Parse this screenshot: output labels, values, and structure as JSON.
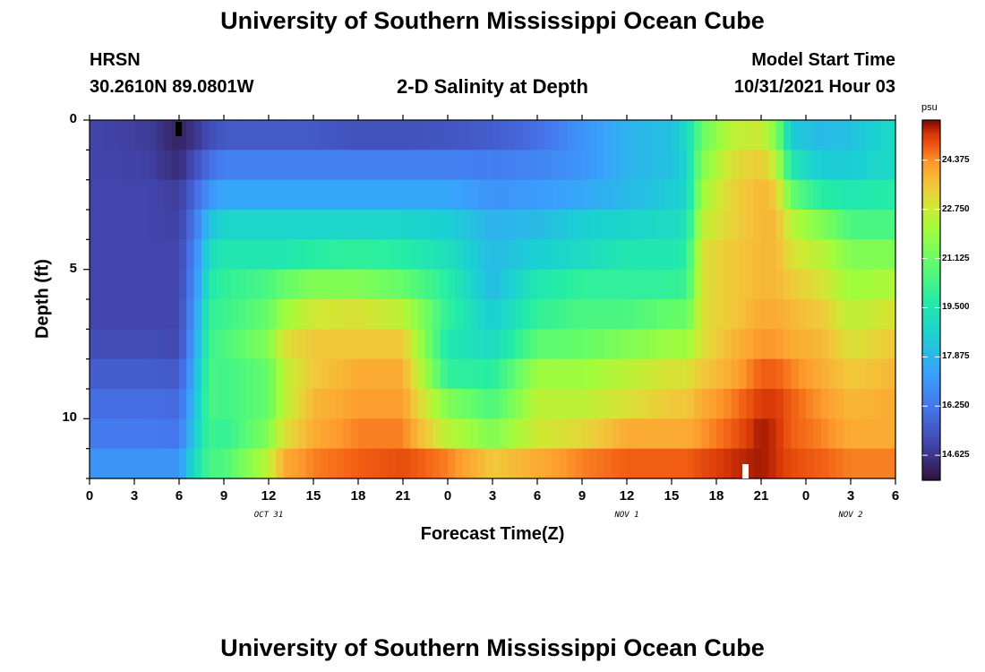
{
  "page": {
    "title": "University of Southern Mississippi Ocean Cube",
    "footer_title": "University of Southern Mississippi Ocean Cube",
    "station": "HRSN",
    "coords": "30.2610N  89.0801W",
    "subtitle": "2-D Salinity at Depth",
    "model_label": "Model Start Time",
    "model_time": "10/31/2021 Hour 03"
  },
  "chart_data": {
    "type": "heatmap",
    "title": "2-D Salinity at Depth",
    "xlabel": "Forecast Time(Z)",
    "ylabel": "Depth (ft)",
    "x_ticks": [
      "0",
      "3",
      "6",
      "9",
      "12",
      "15",
      "18",
      "21",
      "0",
      "3",
      "6",
      "9",
      "12",
      "15",
      "18",
      "21",
      "0",
      "3",
      "6"
    ],
    "x_date_labels": [
      {
        "label": "OCT 31",
        "hour": 12
      },
      {
        "label": "NOV 1",
        "hour": 36
      },
      {
        "label": "NOV 2",
        "hour": 51
      }
    ],
    "x_range_hours": [
      0,
      54
    ],
    "y_ticks": [
      "0",
      "5",
      "10"
    ],
    "y_range_ft": [
      0,
      12
    ],
    "depth_levels_ft": [
      0.5,
      1.5,
      2.5,
      3.5,
      4.5,
      5.5,
      6.5,
      7.5,
      8.5,
      9.5,
      10.5,
      11.5
    ],
    "colorbar": {
      "unit": "psu",
      "ticks": [
        "24.375",
        "22.750",
        "21.125",
        "19.500",
        "17.875",
        "16.250",
        "14.625"
      ],
      "range": [
        13.8,
        25.7
      ]
    },
    "keyframes": [
      {
        "hour": 0,
        "values": [
          15.0,
          15.0,
          15.0,
          15.0,
          15.0,
          15.0,
          15.0,
          15.2,
          15.6,
          16.0,
          16.3,
          17.0
        ]
      },
      {
        "hour": 4,
        "values": [
          14.8,
          14.9,
          15.0,
          15.0,
          15.0,
          15.0,
          15.0,
          15.2,
          15.6,
          16.0,
          16.3,
          17.0
        ]
      },
      {
        "hour": 6,
        "values": [
          14.2,
          14.4,
          14.8,
          14.9,
          15.0,
          15.0,
          15.0,
          15.1,
          15.5,
          15.9,
          16.2,
          17.0
        ]
      },
      {
        "hour": 7,
        "values": [
          14.6,
          15.2,
          15.8,
          16.2,
          16.5,
          16.7,
          17.0,
          17.3,
          17.7,
          18.0,
          18.4,
          19.0
        ]
      },
      {
        "hour": 8,
        "values": [
          15.2,
          16.0,
          17.0,
          18.2,
          19.0,
          19.5,
          20.0,
          20.2,
          20.5,
          20.5,
          20.3,
          20.5
        ]
      },
      {
        "hour": 9,
        "values": [
          15.5,
          16.5,
          17.5,
          18.8,
          19.5,
          20.0,
          20.2,
          20.5,
          20.3,
          20.3,
          20.0,
          20.5
        ]
      },
      {
        "hour": 12,
        "values": [
          15.5,
          16.5,
          17.5,
          18.8,
          19.5,
          20.5,
          21.0,
          21.5,
          21.0,
          21.0,
          21.5,
          22.5
        ]
      },
      {
        "hour": 13,
        "values": [
          15.5,
          16.5,
          17.5,
          18.8,
          19.5,
          21.0,
          22.0,
          23.0,
          22.5,
          22.5,
          23.0,
          24.0
        ]
      },
      {
        "hour": 15,
        "values": [
          15.5,
          16.5,
          17.5,
          18.8,
          19.8,
          21.5,
          22.8,
          23.5,
          23.5,
          23.8,
          24.0,
          24.5
        ]
      },
      {
        "hour": 18,
        "values": [
          15.3,
          16.5,
          17.5,
          18.8,
          20.0,
          21.5,
          23.0,
          23.5,
          24.0,
          24.2,
          24.5,
          24.8
        ]
      },
      {
        "hour": 21,
        "values": [
          15.3,
          16.5,
          17.5,
          18.8,
          19.8,
          21.0,
          22.5,
          23.5,
          24.0,
          24.2,
          24.5,
          25.0
        ]
      },
      {
        "hour": 24,
        "values": [
          15.4,
          16.5,
          17.5,
          18.6,
          19.2,
          19.8,
          20.0,
          19.5,
          20.0,
          21.5,
          22.5,
          24.5
        ]
      },
      {
        "hour": 27,
        "values": [
          15.6,
          16.4,
          17.0,
          17.8,
          18.0,
          18.0,
          18.5,
          19.0,
          19.8,
          20.5,
          21.5,
          23.5
        ]
      },
      {
        "hour": 30,
        "values": [
          16.0,
          16.6,
          17.2,
          18.0,
          18.6,
          19.5,
          20.0,
          20.8,
          22.0,
          22.5,
          22.8,
          24.0
        ]
      },
      {
        "hour": 33,
        "values": [
          17.0,
          17.0,
          17.5,
          18.6,
          19.0,
          20.0,
          20.5,
          21.0,
          22.0,
          22.5,
          23.2,
          24.5
        ]
      },
      {
        "hour": 36,
        "values": [
          17.8,
          17.8,
          18.0,
          18.8,
          19.5,
          20.0,
          20.5,
          21.5,
          22.5,
          23.0,
          24.0,
          24.8
        ]
      },
      {
        "hour": 39,
        "values": [
          18.2,
          18.2,
          18.5,
          19.0,
          19.5,
          20.0,
          21.0,
          22.0,
          23.0,
          23.5,
          24.0,
          24.8
        ]
      },
      {
        "hour": 40,
        "values": [
          19.0,
          18.8,
          18.8,
          19.3,
          19.8,
          20.2,
          21.0,
          22.0,
          23.0,
          23.5,
          24.0,
          24.8
        ]
      },
      {
        "hour": 41,
        "values": [
          21.0,
          21.5,
          22.0,
          22.5,
          23.0,
          23.0,
          23.0,
          23.0,
          23.5,
          24.0,
          24.3,
          25.0
        ]
      },
      {
        "hour": 43,
        "values": [
          22.5,
          23.0,
          23.3,
          23.3,
          23.5,
          23.5,
          23.5,
          23.8,
          24.0,
          24.5,
          24.8,
          25.3
        ]
      },
      {
        "hour": 45,
        "values": [
          22.8,
          23.5,
          23.8,
          23.8,
          23.8,
          23.8,
          24.0,
          24.3,
          24.8,
          25.2,
          25.5,
          25.5
        ]
      },
      {
        "hour": 46,
        "values": [
          21.5,
          22.5,
          23.5,
          23.8,
          23.8,
          23.8,
          24.0,
          24.3,
          24.8,
          25.2,
          25.3,
          25.3
        ]
      },
      {
        "hour": 47,
        "values": [
          18.5,
          19.5,
          21.0,
          22.5,
          23.0,
          23.5,
          23.8,
          24.0,
          24.5,
          24.8,
          24.8,
          25.0
        ]
      },
      {
        "hour": 49,
        "values": [
          18.0,
          18.5,
          19.8,
          21.5,
          22.5,
          23.0,
          23.5,
          23.8,
          24.0,
          24.3,
          24.5,
          24.8
        ]
      },
      {
        "hour": 51,
        "values": [
          18.2,
          18.5,
          19.5,
          20.5,
          21.5,
          22.0,
          22.5,
          23.0,
          23.5,
          23.8,
          24.0,
          24.5
        ]
      },
      {
        "hour": 54,
        "values": [
          19.0,
          19.0,
          19.8,
          20.5,
          21.5,
          22.3,
          23.0,
          23.5,
          23.8,
          24.0,
          24.0,
          24.5
        ]
      }
    ],
    "grid": false,
    "legend": "colorbar-right"
  }
}
